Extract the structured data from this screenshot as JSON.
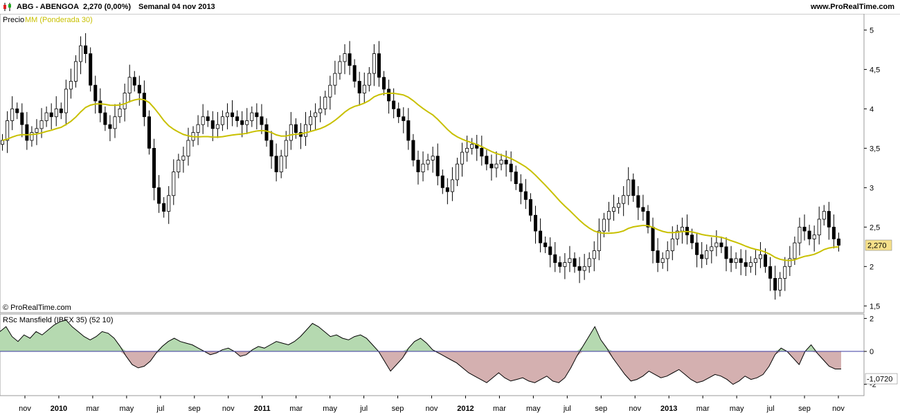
{
  "header": {
    "ticker": "ABG - ABENGOA",
    "price": "2,270 (0,00%)",
    "period": "Semanal  04 nov 2013",
    "site": "www.ProRealTime.com"
  },
  "colors": {
    "up_candle": "#ffffff",
    "down_candle": "#000000",
    "ma_line": "#c8c000",
    "rsc_positive_fill": "#b5d9b0",
    "rsc_negative_fill": "#d4b0b0",
    "zero_line": "#3a3aa0",
    "price_badge": "#f6e08a"
  },
  "icons": {
    "app": "candlestick-icon"
  },
  "chart_data": [
    {
      "type": "candlestick",
      "legend": [
        "Precio",
        "MM (Ponderada 30)"
      ],
      "watermark": "© ProRealTime.com",
      "ylim": [
        1.45,
        5.1
      ],
      "yticks": [
        "5",
        "4,5",
        "4",
        "3,5",
        "3",
        "2,5",
        "2",
        "1,5"
      ],
      "ytick_values": [
        5,
        4.5,
        4,
        3.5,
        3,
        2.5,
        2,
        1.5
      ],
      "last_price_label": "2,270",
      "last_price": 2.27,
      "close": [
        3.6,
        3.85,
        4.0,
        3.95,
        3.8,
        3.6,
        3.7,
        3.75,
        3.85,
        3.95,
        3.9,
        4.0,
        3.95,
        4.25,
        4.35,
        4.6,
        4.8,
        4.7,
        4.3,
        4.1,
        3.95,
        3.8,
        3.75,
        3.9,
        4.0,
        4.2,
        4.4,
        4.3,
        4.2,
        3.9,
        3.5,
        3.0,
        2.8,
        2.7,
        2.9,
        3.2,
        3.35,
        3.4,
        3.6,
        3.7,
        3.8,
        3.9,
        3.85,
        3.75,
        3.8,
        3.9,
        3.95,
        3.9,
        3.85,
        3.8,
        3.85,
        3.95,
        3.9,
        3.8,
        3.6,
        3.4,
        3.2,
        3.4,
        3.6,
        3.8,
        3.7,
        3.65,
        3.8,
        3.9,
        3.95,
        4.0,
        4.15,
        4.3,
        4.45,
        4.6,
        4.7,
        4.55,
        4.35,
        4.2,
        4.3,
        4.45,
        4.7,
        4.4,
        4.25,
        4.1,
        4.0,
        3.9,
        3.85,
        3.6,
        3.35,
        3.2,
        3.3,
        3.35,
        3.4,
        3.15,
        3.0,
        2.95,
        3.1,
        3.3,
        3.45,
        3.5,
        3.55,
        3.5,
        3.4,
        3.3,
        3.25,
        3.3,
        3.35,
        3.3,
        3.2,
        3.05,
        2.95,
        2.85,
        2.65,
        2.45,
        2.3,
        2.25,
        2.15,
        2.05,
        2.0,
        2.05,
        2.1,
        2.0,
        1.95,
        2.0,
        2.1,
        2.2,
        2.45,
        2.6,
        2.7,
        2.75,
        2.8,
        2.9,
        3.1,
        2.9,
        2.75,
        2.7,
        2.5,
        2.2,
        2.05,
        2.1,
        2.2,
        2.35,
        2.45,
        2.5,
        2.4,
        2.3,
        2.15,
        2.1,
        2.2,
        2.25,
        2.3,
        2.25,
        2.1,
        2.05,
        2.1,
        2.05,
        2.0,
        2.05,
        2.1,
        2.15,
        2.0,
        1.85,
        1.7,
        1.85,
        2.0,
        2.1,
        2.3,
        2.5,
        2.45,
        2.35,
        2.4,
        2.6,
        2.7,
        2.5,
        2.35,
        2.27
      ]
    },
    {
      "type": "area",
      "legend": "RSc Mansfield (IBEX 35) (52 10)",
      "ylim": [
        -2.6,
        2.1
      ],
      "yticks": [
        "2",
        "0",
        "-2"
      ],
      "ytick_values": [
        2,
        0,
        -2
      ],
      "last_value_label": "-1,0720",
      "values": [
        1.2,
        1.5,
        0.9,
        0.6,
        1.0,
        0.8,
        1.2,
        1.0,
        1.3,
        1.6,
        1.8,
        1.9,
        1.5,
        1.2,
        0.9,
        0.7,
        0.9,
        1.2,
        1.1,
        0.8,
        0.3,
        -0.3,
        -0.8,
        -1.0,
        -0.9,
        -0.6,
        -0.1,
        0.3,
        0.6,
        0.8,
        0.6,
        0.5,
        0.4,
        0.2,
        0.0,
        -0.2,
        -0.1,
        0.1,
        0.2,
        0.0,
        -0.3,
        -0.2,
        0.1,
        0.3,
        0.2,
        0.4,
        0.6,
        0.5,
        0.4,
        0.6,
        0.9,
        1.3,
        1.7,
        1.5,
        1.2,
        0.9,
        1.0,
        0.8,
        0.7,
        0.9,
        1.0,
        0.8,
        0.4,
        0.0,
        -0.6,
        -1.2,
        -0.8,
        -0.4,
        0.2,
        0.6,
        0.8,
        0.5,
        0.1,
        -0.1,
        -0.3,
        -0.5,
        -0.7,
        -1.0,
        -1.3,
        -1.5,
        -1.7,
        -1.9,
        -1.6,
        -1.3,
        -1.6,
        -1.8,
        -1.7,
        -1.6,
        -1.8,
        -1.9,
        -1.7,
        -1.5,
        -1.8,
        -1.9,
        -1.6,
        -1.0,
        -0.3,
        0.3,
        0.9,
        1.5,
        0.7,
        0.2,
        -0.4,
        -0.9,
        -1.4,
        -1.8,
        -1.7,
        -1.5,
        -1.2,
        -1.4,
        -1.6,
        -1.5,
        -1.3,
        -1.1,
        -1.4,
        -1.7,
        -1.9,
        -1.8,
        -1.6,
        -1.4,
        -1.5,
        -1.7,
        -2.0,
        -1.8,
        -1.5,
        -1.7,
        -1.6,
        -1.4,
        -0.9,
        -0.2,
        0.2,
        0.0,
        -0.4,
        -0.8,
        0.0,
        0.4,
        -0.1,
        -0.5,
        -0.9,
        -1.07,
        -1.07
      ]
    }
  ],
  "x_axis": {
    "labels": [
      {
        "t": "nov",
        "bold": false
      },
      {
        "t": "2010",
        "bold": true
      },
      {
        "t": "mar",
        "bold": false
      },
      {
        "t": "may",
        "bold": false
      },
      {
        "t": "jul",
        "bold": false
      },
      {
        "t": "sep",
        "bold": false
      },
      {
        "t": "nov",
        "bold": false
      },
      {
        "t": "2011",
        "bold": true
      },
      {
        "t": "mar",
        "bold": false
      },
      {
        "t": "may",
        "bold": false
      },
      {
        "t": "jul",
        "bold": false
      },
      {
        "t": "sep",
        "bold": false
      },
      {
        "t": "nov",
        "bold": false
      },
      {
        "t": "2012",
        "bold": true
      },
      {
        "t": "mar",
        "bold": false
      },
      {
        "t": "may",
        "bold": false
      },
      {
        "t": "jul",
        "bold": false
      },
      {
        "t": "sep",
        "bold": false
      },
      {
        "t": "nov",
        "bold": false
      },
      {
        "t": "2013",
        "bold": true
      },
      {
        "t": "mar",
        "bold": false
      },
      {
        "t": "may",
        "bold": false
      },
      {
        "t": "jul",
        "bold": false
      },
      {
        "t": "sep",
        "bold": false
      },
      {
        "t": "nov",
        "bold": false
      }
    ]
  }
}
